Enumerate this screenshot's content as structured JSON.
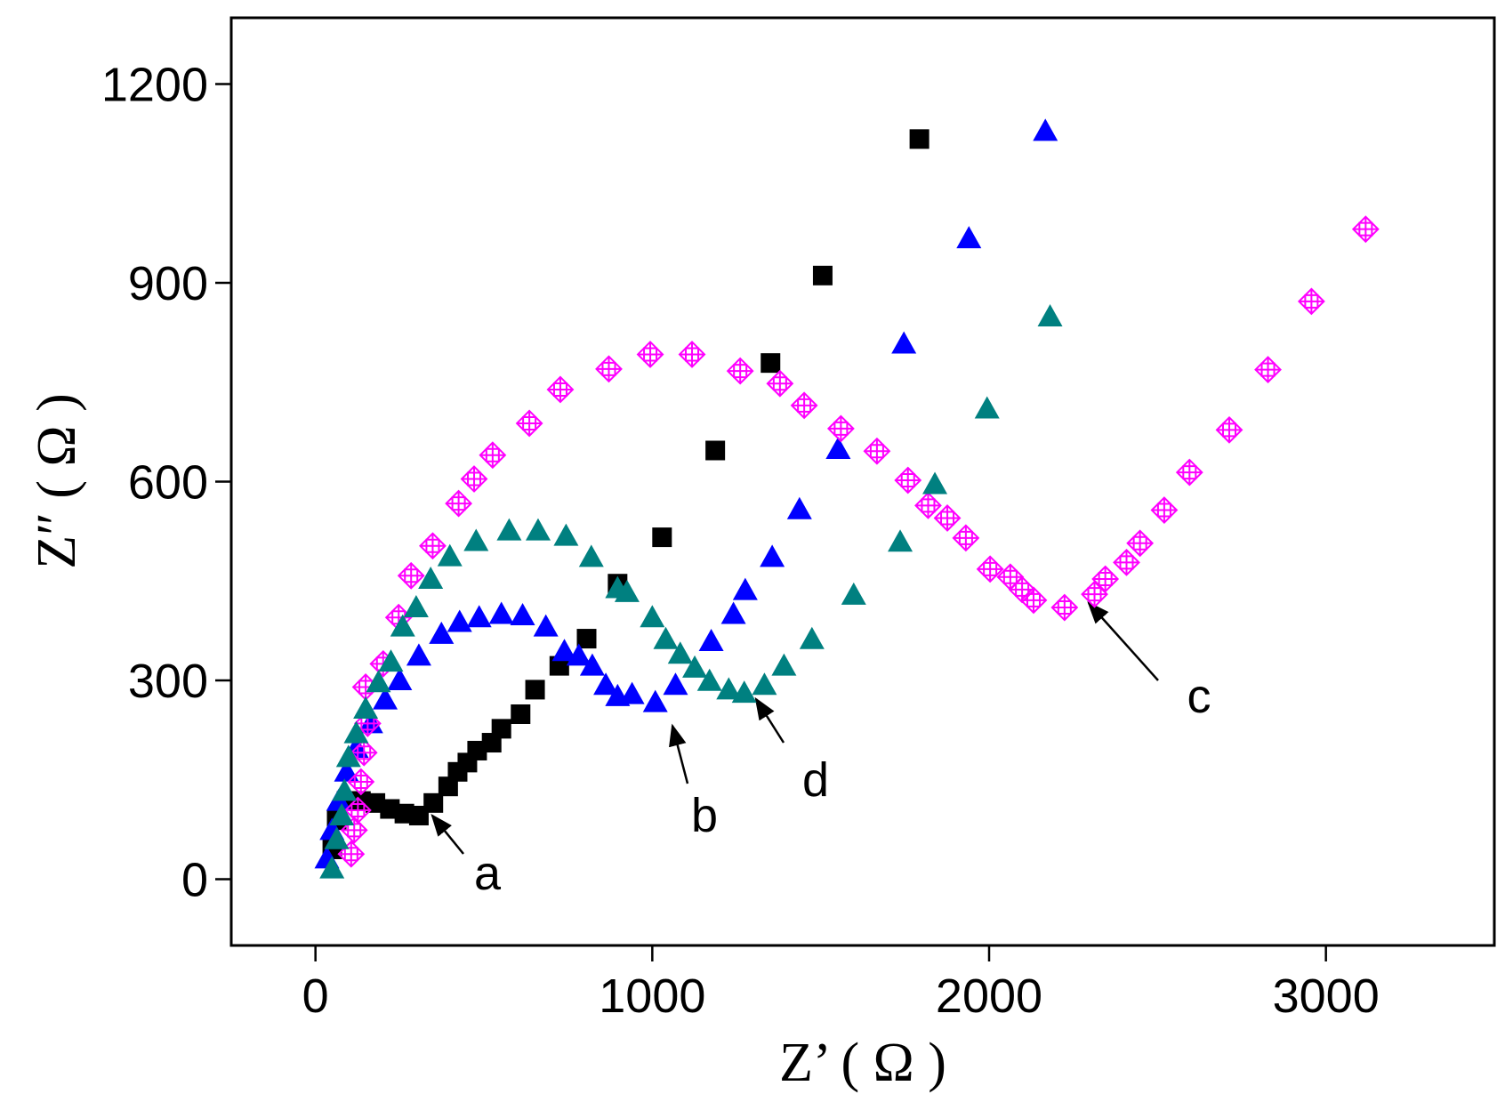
{
  "chart_data": {
    "type": "scatter",
    "x_label": "Z’ ( Ω )",
    "y_label": "Z″ ( Ω )",
    "xlim": [
      -250,
      3500
    ],
    "xticks": [
      0,
      1000,
      2000,
      3000
    ],
    "ylim": [
      -100,
      1300
    ],
    "yticks": [
      0,
      300,
      600,
      900,
      1200
    ],
    "series": [
      {
        "name": "a",
        "color": "#000000",
        "marker": "square",
        "x": [
          50,
          63,
          92,
          135,
          178,
          221,
          264,
          307,
          350,
          394,
          422,
          451,
          480,
          523,
          552,
          609,
          652,
          724,
          805,
          897,
          1029,
          1187,
          1351,
          1506,
          1793
        ],
        "values": [
          45,
          89,
          118,
          118,
          115,
          106,
          99,
          96,
          115,
          140,
          162,
          176,
          194,
          206,
          227,
          249,
          286,
          322,
          363,
          446,
          516,
          647,
          779,
          911,
          1117
        ]
      },
      {
        "name": "b",
        "color": "#0000ff",
        "marker": "triangle",
        "x": [
          34,
          49,
          69,
          92,
          121,
          164,
          207,
          250,
          307,
          374,
          428,
          486,
          552,
          615,
          684,
          739,
          782,
          822,
          862,
          897,
          940,
          1009,
          1069,
          1175,
          1241,
          1276,
          1356,
          1437,
          1552,
          1747,
          1940,
          2167
        ],
        "values": [
          31,
          74,
          118,
          162,
          198,
          235,
          271,
          300,
          337,
          370,
          388,
          395,
          400,
          398,
          381,
          344,
          337,
          322,
          293,
          276,
          279,
          267,
          293,
          359,
          400,
          436,
          486,
          558,
          649,
          808,
          967,
          1129
        ]
      },
      {
        "name": "c",
        "color": "#ff00ff",
        "marker": "diamond-cross",
        "x": [
          106,
          115,
          126,
          135,
          144,
          155,
          149,
          201,
          247,
          284,
          348,
          425,
          471,
          526,
          635,
          727,
          871,
          994,
          1118,
          1261,
          1379,
          1451,
          1560,
          1667,
          1759,
          1819,
          1876,
          1931,
          2003,
          2063,
          2098,
          2132,
          2224,
          2313,
          2345,
          2408,
          2448,
          2520,
          2595,
          2713,
          2828,
          2957,
          3118
        ],
        "values": [
          38,
          74,
          104,
          147,
          191,
          235,
          290,
          325,
          395,
          458,
          503,
          567,
          604,
          640,
          688,
          739,
          770,
          792,
          792,
          767,
          748,
          715,
          680,
          646,
          602,
          564,
          545,
          515,
          468,
          456,
          437,
          421,
          410,
          430,
          453,
          478,
          507,
          557,
          614,
          678,
          769,
          872,
          981
        ]
      },
      {
        "name": "d",
        "color": "#008080",
        "marker": "triangle",
        "x": [
          49,
          63,
          78,
          86,
          98,
          121,
          149,
          187,
          224,
          259,
          299,
          342,
          399,
          477,
          575,
          661,
          744,
          819,
          897,
          925,
          1000,
          1040,
          1083,
          1126,
          1170,
          1227,
          1273,
          1333,
          1391,
          1474,
          1598,
          1736,
          1839,
          1994,
          2181
        ],
        "values": [
          16,
          60,
          96,
          133,
          184,
          220,
          257,
          297,
          328,
          381,
          410,
          453,
          487,
          510,
          526,
          526,
          518,
          486,
          439,
          433,
          395,
          362,
          340,
          319,
          299,
          286,
          281,
          293,
          322,
          362,
          429,
          509,
          596,
          710,
          849
        ]
      }
    ]
  }
}
